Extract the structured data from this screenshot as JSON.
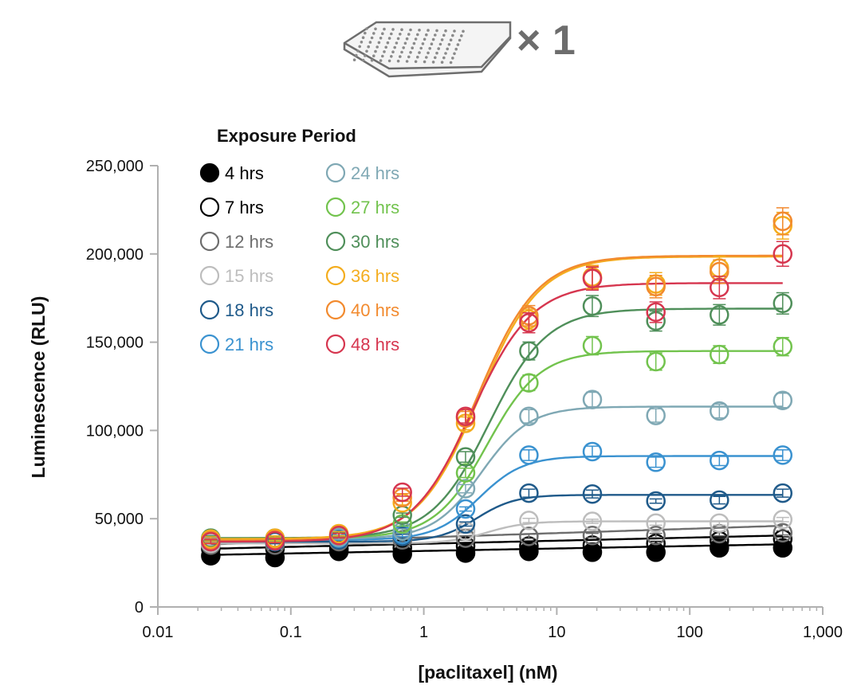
{
  "header": {
    "multiplier": "× 1",
    "plate_icon": "96-well-plate-icon"
  },
  "chart_data": {
    "type": "scatter",
    "title": "",
    "xlabel": "[paclitaxel] (nM)",
    "ylabel": "Luminescence (RLU)",
    "xscale": "log",
    "xlim": [
      0.01,
      1000
    ],
    "ylim": [
      0,
      250000
    ],
    "x_ticks": [
      {
        "v": 0.01,
        "label": "0.01"
      },
      {
        "v": 0.1,
        "label": "0.1"
      },
      {
        "v": 1,
        "label": "1"
      },
      {
        "v": 10,
        "label": "10"
      },
      {
        "v": 100,
        "label": "100"
      },
      {
        "v": 1000,
        "label": "1,000"
      }
    ],
    "y_ticks": [
      {
        "v": 0,
        "label": "0"
      },
      {
        "v": 50000,
        "label": "50,000"
      },
      {
        "v": 100000,
        "label": "100,000"
      },
      {
        "v": 150000,
        "label": "150,000"
      },
      {
        "v": 200000,
        "label": "200,000"
      },
      {
        "v": 250000,
        "label": "250,000"
      }
    ],
    "grid": false,
    "legend_title": "Exposure Period",
    "legend_placement": "top-left",
    "x": [
      0.025,
      0.076,
      0.23,
      0.69,
      2.06,
      6.17,
      18.5,
      55.6,
      167,
      500
    ],
    "series": [
      {
        "name": "4 hrs",
        "color": "#000000",
        "filled": true,
        "values": [
          29000,
          28000,
          31500,
          30000,
          30500,
          31500,
          31000,
          31000,
          33500,
          33500
        ],
        "fit": {
          "bottom": 29500,
          "top": 29500,
          "slope": 6000
        }
      },
      {
        "name": "7 hrs",
        "color": "#000000",
        "filled": false,
        "values": [
          33000,
          33000,
          33000,
          33500,
          34500,
          34500,
          35000,
          36000,
          37500,
          38500
        ],
        "fit": {
          "bottom": 33000,
          "top": 33000,
          "slope": 7500
        }
      },
      {
        "name": "12 hrs",
        "color": "#6d6d6d",
        "filled": false,
        "values": [
          35000,
          35000,
          37000,
          38000,
          39000,
          40000,
          40500,
          40500,
          41500,
          42000
        ],
        "fit": {
          "bottom": 35500,
          "top": 35500,
          "slope": 10500
        }
      },
      {
        "name": "15 hrs",
        "color": "#bdbdbd",
        "filled": false,
        "values": [
          36000,
          37000,
          38000,
          40000,
          43000,
          49000,
          48500,
          47500,
          47500,
          49500
        ],
        "fit": {
          "bottom": 36000,
          "top": 48500,
          "ec50": 3.0,
          "hill": 3.0
        }
      },
      {
        "name": "18 hrs",
        "color": "#1f5a8a",
        "filled": false,
        "values": [
          37000,
          37000,
          38000,
          40000,
          47000,
          64500,
          64000,
          60000,
          60500,
          64500
        ],
        "fit": {
          "bottom": 37000,
          "top": 63500,
          "ec50": 2.5,
          "hill": 3.0
        }
      },
      {
        "name": "21 hrs",
        "color": "#3a92d0",
        "filled": false,
        "values": [
          38000,
          38500,
          39000,
          41000,
          55500,
          86000,
          88000,
          82000,
          83000,
          86000
        ],
        "fit": {
          "bottom": 38000,
          "top": 85500,
          "ec50": 2.6,
          "hill": 2.6
        }
      },
      {
        "name": "24 hrs",
        "color": "#7fa8b4",
        "filled": false,
        "values": [
          38500,
          38500,
          39500,
          43000,
          67000,
          108000,
          117500,
          108500,
          111000,
          117000
        ],
        "fit": {
          "bottom": 38500,
          "top": 113500,
          "ec50": 2.7,
          "hill": 2.4
        }
      },
      {
        "name": "27 hrs",
        "color": "#72c34d",
        "filled": false,
        "values": [
          39000,
          38500,
          40500,
          47000,
          76000,
          127000,
          148000,
          139000,
          143000,
          147500
        ],
        "fit": {
          "bottom": 39000,
          "top": 145000,
          "ec50": 3.0,
          "hill": 2.2
        }
      },
      {
        "name": "30 hrs",
        "color": "#4f8f5a",
        "filled": false,
        "values": [
          39000,
          39000,
          41000,
          52000,
          85000,
          145000,
          170500,
          162000,
          165500,
          172000
        ],
        "fit": {
          "bottom": 39000,
          "top": 169000,
          "ec50": 3.1,
          "hill": 2.0
        }
      },
      {
        "name": "36 hrs",
        "color": "#f4ad1e",
        "filled": false,
        "values": [
          38500,
          39000,
          41500,
          59000,
          104000,
          163000,
          187000,
          183000,
          192000,
          216000
        ],
        "fit": {
          "bottom": 38500,
          "top": 198500,
          "ec50": 2.6,
          "hill": 1.9
        }
      },
      {
        "name": "40 hrs",
        "color": "#f28a2e",
        "filled": false,
        "values": [
          37500,
          38000,
          40500,
          62000,
          107000,
          165000,
          186500,
          181500,
          190000,
          218500
        ],
        "fit": {
          "bottom": 37500,
          "top": 199000,
          "ec50": 2.5,
          "hill": 1.9
        }
      },
      {
        "name": "48 hrs",
        "color": "#d6364f",
        "filled": false,
        "values": [
          37000,
          37500,
          40500,
          65000,
          108000,
          161000,
          186000,
          167000,
          181000,
          200000
        ],
        "fit": {
          "bottom": 37000,
          "top": 183500,
          "ec50": 2.3,
          "hill": 1.9
        }
      }
    ]
  }
}
